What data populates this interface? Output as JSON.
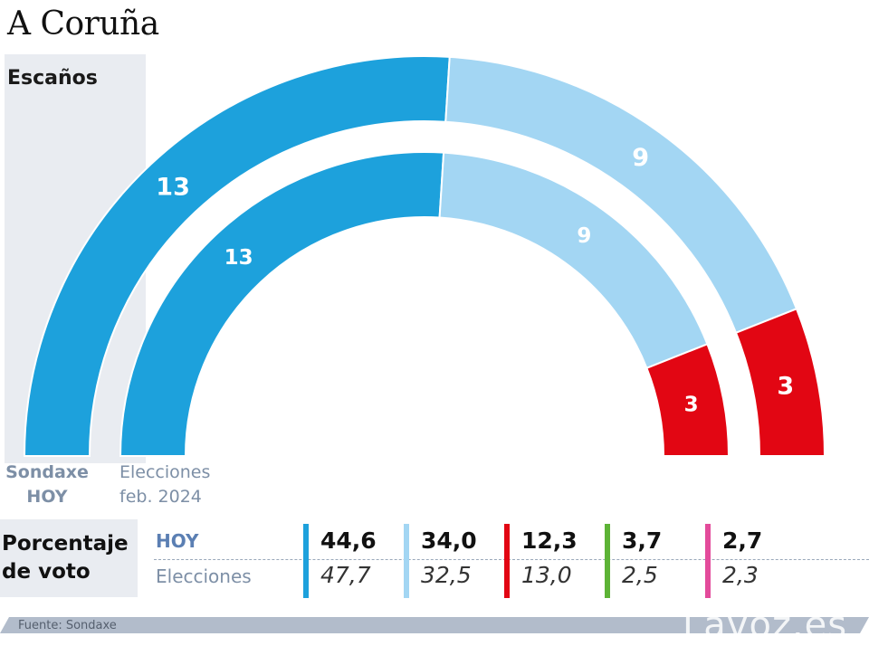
{
  "title": "A Coruña",
  "escanos_label": "Escaños",
  "captions": {
    "outer": "Sondaxe\nHOY",
    "inner": "Elecciones\nfeb. 2024"
  },
  "chart_data": [
    {
      "type": "semicircle",
      "title": "Escaños",
      "series": [
        {
          "name": "Sondaxe HOY",
          "values": [
            13,
            9,
            3
          ]
        },
        {
          "name": "Elecciones feb. 2024",
          "values": [
            13,
            9,
            3
          ]
        }
      ],
      "colors": [
        "#1da1dc",
        "#a3d6f3",
        "#e20613"
      ]
    },
    {
      "type": "table",
      "title": "Porcentaje de voto",
      "rows": [
        "HOY",
        "Elecciones"
      ],
      "columns": [
        {
          "color": "#1da1dc",
          "hoy": "44,6",
          "elecciones": "47,7"
        },
        {
          "color": "#a3d6f3",
          "hoy": "34,0",
          "elecciones": "32,5"
        },
        {
          "color": "#e20613",
          "hoy": "12,3",
          "elecciones": "13,0"
        },
        {
          "color": "#5db336",
          "hoy": "3,7",
          "elecciones": "2,5"
        },
        {
          "color": "#e34b9b",
          "hoy": "2,7",
          "elecciones": "2,3"
        }
      ]
    }
  ],
  "pct_title": "Porcentaje\nde voto",
  "row_labels": {
    "hoy": "HOY",
    "elecciones": "Elecciones"
  },
  "footer": "Fuente:  Sondaxe",
  "brand": "Lavoz.es"
}
